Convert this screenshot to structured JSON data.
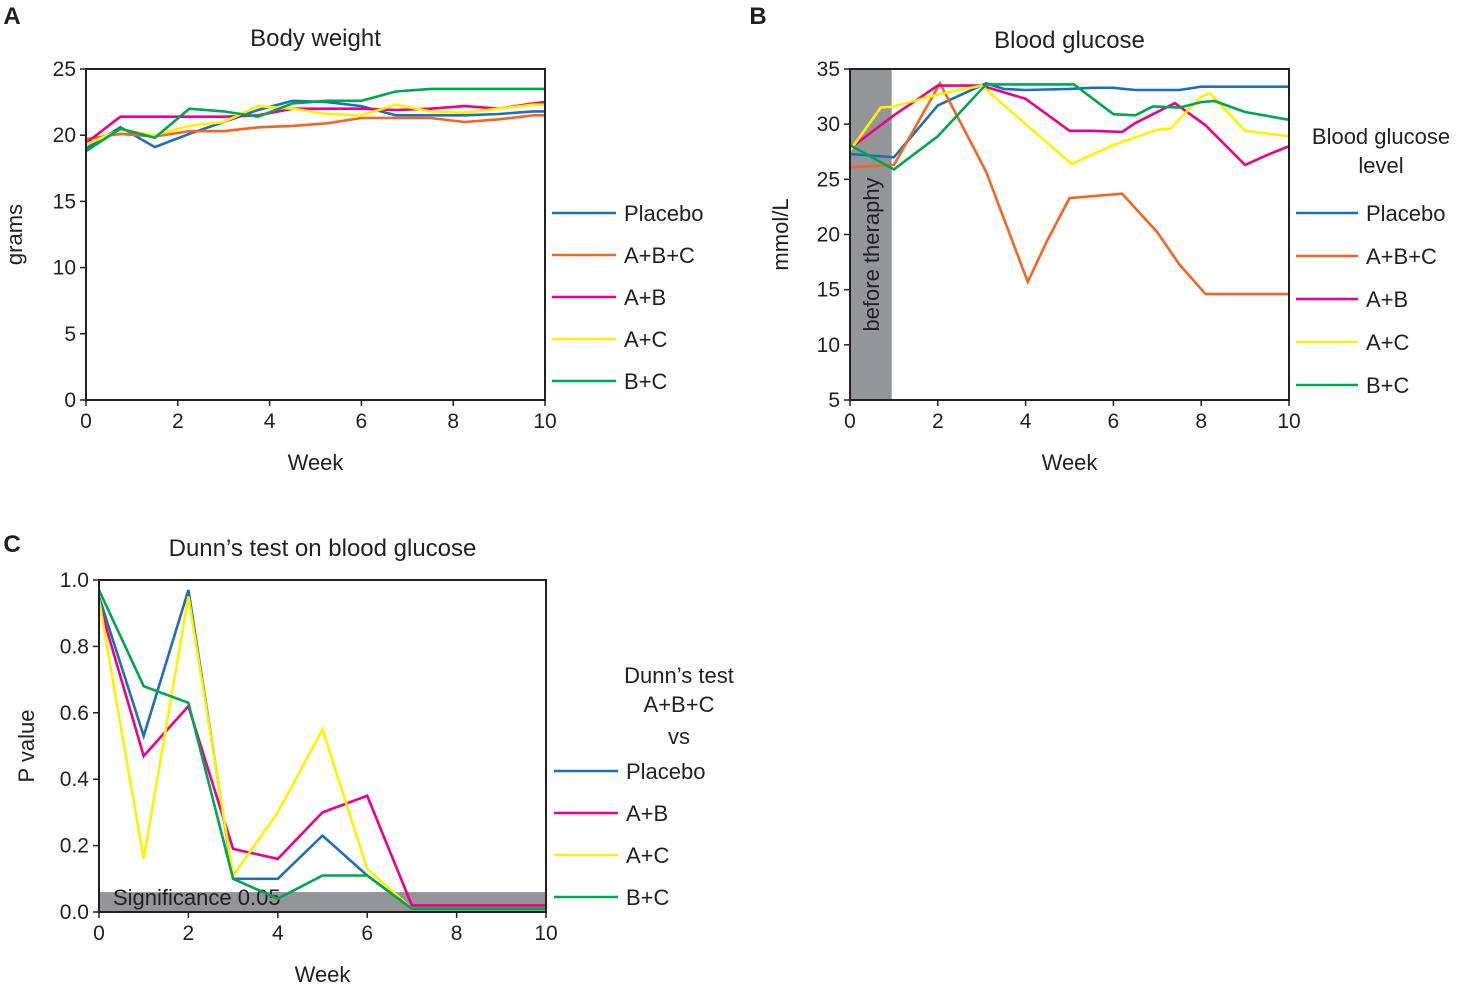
{
  "colors": {
    "placebo": "#1f6fb5",
    "abc": "#f26522",
    "ab": "#ec008c",
    "ac": "#fff200",
    "bc": "#00a651",
    "shade": "#939598",
    "axis": "#231f20"
  },
  "chart_data": [
    {
      "id": "A",
      "panel_label": "A",
      "type": "line",
      "title": "Body weight",
      "xlabel": "Week",
      "ylabel": "grams",
      "xlim": [
        0,
        10
      ],
      "ylim": [
        0,
        25
      ],
      "xticks": [
        0,
        2,
        4,
        6,
        8,
        10
      ],
      "yticks": [
        0,
        5,
        10,
        15,
        20,
        25
      ],
      "legend_position": "right",
      "legend_title": [],
      "series": [
        {
          "name": "Placebo",
          "key": "placebo",
          "x": [
            0,
            0.75,
            1.5,
            2.25,
            3,
            3.75,
            4.5,
            5.25,
            6,
            6.75,
            7.5,
            8.25,
            9,
            9.75,
            10
          ],
          "y": [
            19.0,
            20.6,
            19.1,
            20.1,
            21.0,
            21.9,
            22.6,
            22.5,
            22.2,
            21.5,
            21.5,
            21.5,
            21.6,
            21.8,
            21.8
          ]
        },
        {
          "name": "A+B+C",
          "key": "abc",
          "x": [
            0,
            0.75,
            1.5,
            2.25,
            3,
            3.75,
            4.5,
            5.25,
            6,
            6.75,
            7.5,
            8.25,
            9,
            9.75,
            10
          ],
          "y": [
            19.7,
            20.1,
            19.9,
            20.3,
            20.3,
            20.6,
            20.7,
            20.9,
            21.3,
            21.3,
            21.3,
            21.0,
            21.2,
            21.5,
            21.5
          ]
        },
        {
          "name": "A+B",
          "key": "ab",
          "x": [
            0,
            0.75,
            1.5,
            2.25,
            3,
            3.75,
            4.5,
            5.25,
            6,
            6.75,
            7.5,
            8.25,
            9,
            9.75,
            10
          ],
          "y": [
            19.4,
            21.4,
            21.4,
            21.4,
            21.4,
            21.5,
            22.0,
            22.0,
            22.0,
            21.9,
            22.0,
            22.2,
            22.0,
            22.4,
            22.5
          ]
        },
        {
          "name": "A+C",
          "key": "ac",
          "x": [
            0,
            0.75,
            1.5,
            2.25,
            3,
            3.75,
            4.5,
            5.25,
            6,
            6.75,
            7.5,
            8.25,
            9,
            9.75,
            10
          ],
          "y": [
            19.3,
            20.4,
            20.0,
            20.7,
            21.0,
            22.2,
            22.0,
            21.6,
            21.5,
            22.3,
            21.8,
            21.7,
            22.0,
            22.3,
            22.3
          ]
        },
        {
          "name": "B+C",
          "key": "bc",
          "x": [
            0,
            0.75,
            1.5,
            2.25,
            3,
            3.75,
            4.5,
            5.25,
            6,
            6.75,
            7.5,
            8.25,
            9,
            9.75,
            10
          ],
          "y": [
            18.8,
            20.5,
            19.8,
            22.0,
            21.8,
            21.4,
            22.4,
            22.6,
            22.6,
            23.3,
            23.5,
            23.5,
            23.5,
            23.5,
            23.5
          ]
        }
      ]
    },
    {
      "id": "B",
      "panel_label": "B",
      "type": "line",
      "title": "Blood glucose",
      "xlabel": "Week",
      "ylabel": "mmol/L",
      "xlim": [
        0,
        10
      ],
      "ylim": [
        5,
        35
      ],
      "xticks": [
        0,
        2,
        4,
        6,
        8,
        10
      ],
      "yticks": [
        5,
        10,
        15,
        20,
        25,
        30,
        35
      ],
      "legend_position": "right",
      "legend_title": [
        "Blood glucose",
        "level"
      ],
      "shaded_region": {
        "x": [
          0,
          0.95
        ],
        "label": "before theraphy"
      },
      "series": [
        {
          "name": "Placebo",
          "key": "placebo",
          "x": [
            0,
            1,
            2,
            3.1,
            3.5,
            4,
            5,
            5.5,
            6,
            6.5,
            7,
            7.5,
            8,
            8.5,
            9,
            9.5,
            10
          ],
          "y": [
            27.3,
            27.0,
            31.7,
            33.7,
            33.2,
            33.1,
            33.2,
            33.3,
            33.3,
            33.1,
            33.1,
            33.1,
            33.4,
            33.4,
            33.4,
            33.4,
            33.4
          ]
        },
        {
          "name": "A+B+C",
          "key": "abc",
          "x": [
            0,
            1,
            2.05,
            3.1,
            4.05,
            4.5,
            5,
            6.2,
            7,
            7.5,
            8.1,
            9,
            10
          ],
          "y": [
            26.1,
            26.3,
            33.7,
            25.7,
            15.7,
            19.5,
            23.3,
            23.7,
            20.2,
            17.3,
            14.6,
            14.6,
            14.6
          ]
        },
        {
          "name": "A+B",
          "key": "ab",
          "x": [
            0,
            1,
            2,
            3,
            3.5,
            4,
            5,
            5.5,
            6.2,
            6.5,
            7.4,
            8.1,
            9,
            9.5,
            10
          ],
          "y": [
            27.8,
            30.8,
            33.5,
            33.5,
            32.9,
            32.3,
            29.4,
            29.4,
            29.3,
            30.1,
            31.9,
            29.9,
            26.3,
            27.2,
            28.0
          ]
        },
        {
          "name": "A+C",
          "key": "ac",
          "x": [
            0,
            0.7,
            1,
            2,
            3,
            4,
            5.05,
            6,
            7,
            7.3,
            8,
            8.2,
            9,
            10
          ],
          "y": [
            27.6,
            31.5,
            31.6,
            32.7,
            33.5,
            30.0,
            26.4,
            28.1,
            29.5,
            29.6,
            32.5,
            32.8,
            29.4,
            28.9
          ]
        },
        {
          "name": "B+C",
          "key": "bc",
          "x": [
            0,
            1,
            2,
            3.1,
            3.5,
            4,
            5.1,
            5.5,
            6,
            6.5,
            6.9,
            7.5,
            8,
            8.3,
            9,
            10
          ],
          "y": [
            28.1,
            25.9,
            28.9,
            33.6,
            33.6,
            33.6,
            33.6,
            32.4,
            30.9,
            30.8,
            31.6,
            31.5,
            32.0,
            32.1,
            31.1,
            30.4
          ]
        }
      ]
    },
    {
      "id": "C",
      "panel_label": "C",
      "type": "line",
      "title": "Dunn’s test on blood glucose",
      "xlabel": "Week",
      "ylabel": "P value",
      "xlim": [
        0,
        10
      ],
      "ylim": [
        0,
        1.0
      ],
      "xticks": [
        0,
        2,
        4,
        6,
        8,
        10
      ],
      "yticks": [
        0.0,
        0.2,
        0.4,
        0.6,
        0.8,
        1.0
      ],
      "ytick_labels": [
        "0.0",
        "0.2",
        "0.4",
        "0.6",
        "0.8",
        "1.0"
      ],
      "legend_position": "right",
      "legend_title": [
        "Dunn’s test",
        "A+B+C",
        "vs"
      ],
      "shaded_region": {
        "y": [
          0,
          0.06
        ],
        "label": "Significance 0.05"
      },
      "series": [
        {
          "name": "Placebo",
          "key": "placebo",
          "x": [
            0,
            1,
            2,
            3,
            4,
            5,
            6,
            7,
            8,
            9,
            10
          ],
          "y": [
            0.95,
            0.53,
            0.97,
            0.1,
            0.1,
            0.23,
            0.11,
            0.01,
            0.01,
            0.01,
            0.01
          ]
        },
        {
          "name": "A+B",
          "key": "ab",
          "x": [
            0,
            1,
            2,
            3,
            4,
            5,
            6,
            7,
            8,
            9,
            10
          ],
          "y": [
            0.93,
            0.47,
            0.62,
            0.19,
            0.16,
            0.3,
            0.35,
            0.02,
            0.02,
            0.02,
            0.02
          ]
        },
        {
          "name": "A+C",
          "key": "ac",
          "x": [
            0,
            1,
            2,
            3,
            4,
            5,
            6,
            7,
            8,
            9,
            10
          ],
          "y": [
            0.94,
            0.16,
            0.95,
            0.11,
            0.3,
            0.55,
            0.13,
            0.01,
            0.01,
            0.01,
            0.01
          ]
        },
        {
          "name": "B+C",
          "key": "bc",
          "x": [
            0,
            1,
            2,
            3,
            4,
            5,
            6,
            7,
            8,
            9,
            10
          ],
          "y": [
            0.97,
            0.68,
            0.63,
            0.1,
            0.04,
            0.11,
            0.11,
            0.01,
            0.01,
            0.01,
            0.01
          ]
        }
      ]
    }
  ]
}
